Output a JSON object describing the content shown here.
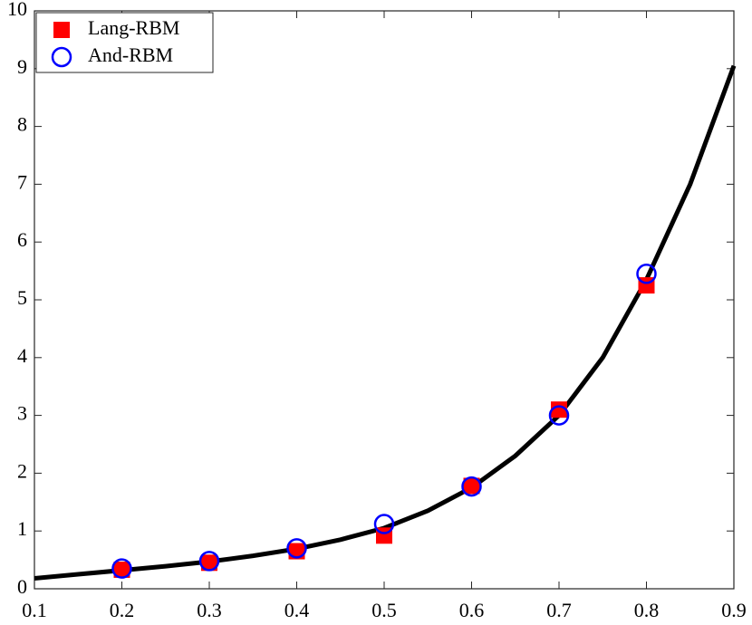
{
  "chart_data": {
    "type": "scatter",
    "xlim": [
      0.1,
      0.9
    ],
    "xticks": [
      0.1,
      0.2,
      0.3,
      0.4,
      0.5,
      0.6,
      0.7,
      0.8,
      0.9
    ],
    "ylim": [
      0,
      10
    ],
    "yticks": [
      0,
      1,
      2,
      3,
      4,
      5,
      6,
      7,
      8,
      9,
      10
    ],
    "grid": false,
    "legend": "upper left",
    "series": [
      {
        "marker": "line",
        "color": "#000000",
        "x": [
          0.1,
          0.15,
          0.2,
          0.25,
          0.3,
          0.35,
          0.4,
          0.45,
          0.5,
          0.55,
          0.6,
          0.65,
          0.7,
          0.75,
          0.8,
          0.85,
          0.9
        ],
        "values": [
          0.18,
          0.25,
          0.32,
          0.39,
          0.47,
          0.57,
          0.69,
          0.85,
          1.05,
          1.35,
          1.75,
          2.3,
          3.0,
          4.0,
          5.35,
          7.0,
          9.05
        ]
      },
      {
        "name": "Lang-RBM",
        "marker": "square",
        "color": "#ff0000",
        "x": [
          0.2,
          0.3,
          0.4,
          0.5,
          0.6,
          0.7,
          0.8
        ],
        "values": [
          0.33,
          0.45,
          0.65,
          0.92,
          1.78,
          3.1,
          5.25
        ]
      },
      {
        "name": "And-RBM",
        "marker": "circle",
        "color": "#0000ff",
        "x": [
          0.2,
          0.3,
          0.4,
          0.5,
          0.6,
          0.7,
          0.8
        ],
        "values": [
          0.35,
          0.48,
          0.7,
          1.12,
          1.77,
          3.0,
          5.45
        ]
      }
    ]
  }
}
